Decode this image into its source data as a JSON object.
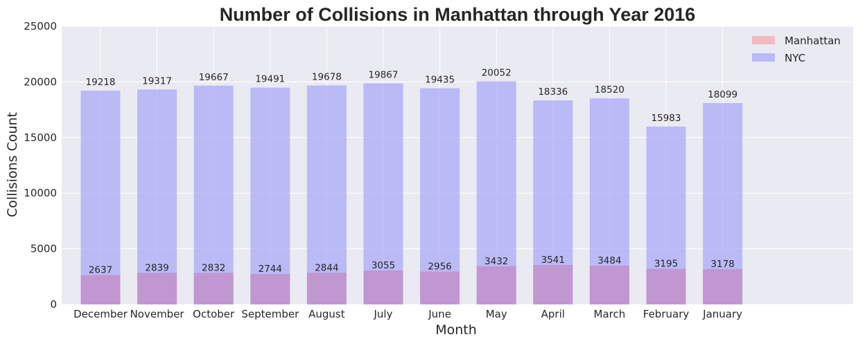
{
  "chart_data": {
    "type": "bar",
    "title": "Number of Collisions in Manhattan through Year 2016",
    "xlabel": "Month",
    "ylabel": "Collisions Count",
    "categories": [
      "December",
      "November",
      "October",
      "September",
      "August",
      "July",
      "June",
      "May",
      "April",
      "March",
      "February",
      "January"
    ],
    "series": [
      {
        "name": "Manhattan",
        "color": "#f4a8ad",
        "values": [
          2637,
          2839,
          2832,
          2744,
          2844,
          3055,
          2956,
          3432,
          3541,
          3484,
          3195,
          3178
        ]
      },
      {
        "name": "NYC",
        "color": "#a7a8f7",
        "values": [
          19218,
          19317,
          19667,
          19491,
          19678,
          19867,
          19435,
          20052,
          18336,
          18520,
          15983,
          18099
        ]
      }
    ],
    "ylim": [
      0,
      25000
    ],
    "yticks": [
      0,
      5000,
      10000,
      15000,
      20000,
      25000
    ],
    "grid": true,
    "legend": "top-right",
    "background_color": "#eaeaf2",
    "overlap_color": "#c197d2"
  }
}
